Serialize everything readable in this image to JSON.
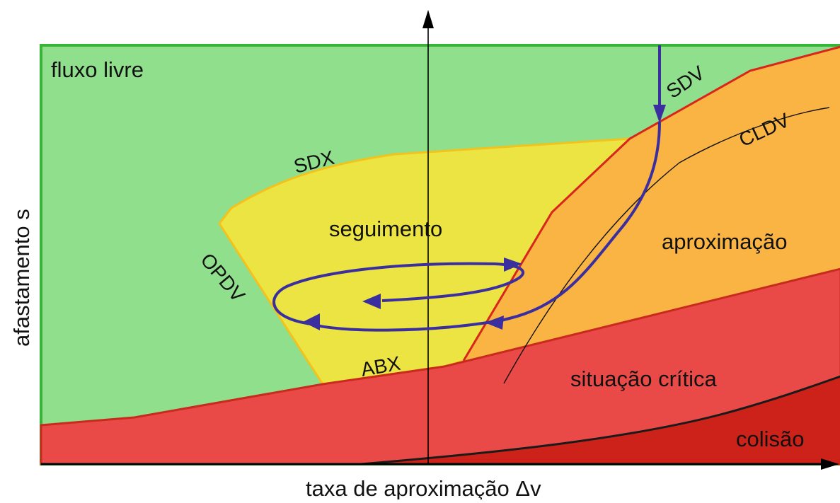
{
  "diagram": {
    "regions": {
      "free_flow": "fluxo livre",
      "following": "seguimento",
      "approach": "aproximação",
      "critical": "situação crítica",
      "collision": "colisão"
    },
    "curves": {
      "sdv": "SDV",
      "cldv": "CLDV",
      "sdx": "SDX",
      "opdv": "OPDV",
      "abx": "ABX"
    },
    "axes": {
      "x_title": "taxa de aproximação Δv",
      "y_title": "afastamento  s"
    },
    "colors": {
      "free_flow": "#8fdf8c",
      "following": "#ebe442",
      "approach": "#f9b443",
      "critical": "#e94a47",
      "collision": "#cc2219",
      "trajectory": "#3b2fa0",
      "border_green": "#38b538",
      "border_yellow": "#f3c21c",
      "border_red": "#d8261c"
    }
  }
}
